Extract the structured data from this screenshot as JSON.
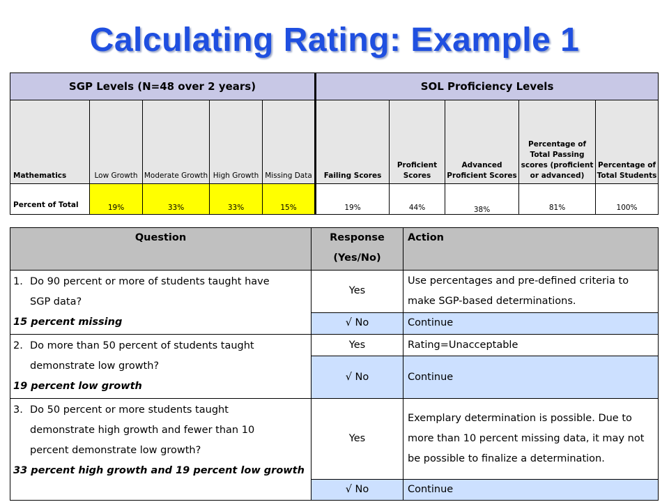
{
  "title": "Calculating Rating: Example 1",
  "top_table": {
    "group_sgp": "SGP Levels (N=48 over 2 years)",
    "group_sol": "SOL Proficiency Levels",
    "headers": {
      "mathematics": "Mathematics",
      "low_growth": "Low Growth",
      "moderate_growth": "Moderate Growth",
      "high_growth": "High Growth",
      "missing_data": "Missing Data",
      "failing": "Failing Scores",
      "proficient": "Proficient Scores",
      "advanced": "Advanced Proficient Scores",
      "pct_passing": "Percentage of Total Passing scores (proficient or advanced)",
      "pct_total": "Percentage of Total Students"
    },
    "row_label": "Percent of Total",
    "values": {
      "low_growth": "19%",
      "moderate_growth": "33%",
      "high_growth": "33%",
      "missing_data": "15%",
      "failing": "19%",
      "proficient": "44%",
      "advanced": "38%",
      "pct_passing": "81%",
      "pct_total": "100%"
    },
    "highlight_color": "#ffff00"
  },
  "bottom_table": {
    "headers": {
      "question": "Question",
      "response": "Response (Yes/No)",
      "action": "Action"
    },
    "q1": {
      "num": "1.",
      "text": "Do 90 percent or more of students taught have SGP data?",
      "note": "15 percent missing",
      "yes": "Yes",
      "yes_action": "Use percentages and pre-defined  criteria to make SGP-based determinations.",
      "no": "√  No",
      "no_action": "Continue"
    },
    "q2": {
      "num": "2.",
      "text": "Do more than 50 percent of students taught demonstrate low growth?",
      "note": "19 percent low growth",
      "yes": "Yes",
      "yes_action": "Rating=Unacceptable",
      "no": "√  No",
      "no_action": "Continue"
    },
    "q3": {
      "num": "3.",
      "text": "Do 50 percent or more students taught demonstrate high growth and fewer than 10 percent demonstrate low growth?",
      "note": "33 percent high growth and 19 percent low growth",
      "yes": "Yes",
      "yes_action": "Exemplary determination is possible.  Due to more than 10 percent missing data, it may not be possible to finalize a determination.",
      "no": "√  No",
      "no_action": "Continue"
    },
    "selected_color": "#cce0ff"
  }
}
